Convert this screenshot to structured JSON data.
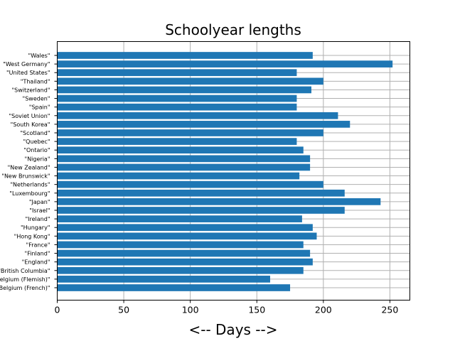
{
  "chart_data": {
    "type": "bar",
    "orientation": "horizontal",
    "title": "Schoolyear lengths",
    "xlabel": "<-- Days -->",
    "ylabel": "",
    "xlim": [
      0,
      265
    ],
    "xticks": [
      0,
      50,
      100,
      150,
      200,
      250
    ],
    "grid": true,
    "bar_color": "#1f77b4",
    "categories": [
      "\"Wales\"",
      "\"West Germany\"",
      "\"United States\"",
      "\"Thailand\"",
      "\"Switzerland\"",
      "\"Sweden\"",
      "\"Spain\"",
      "\"Soviet Union\"",
      "\"South Korea\"",
      "\"Scotland\"",
      "\"Quebec\"",
      "\"Ontario\"",
      "\"Nigeria\"",
      "\"New Zealand\"",
      "\"New Brunswick\"",
      "\"Netherlands\"",
      "\"Luxembourg\"",
      "\"Japan\"",
      "\"Israel\"",
      "\"Ireland\"",
      "\"Hungary\"",
      "\"Hong Kong\"",
      "\"France\"",
      "\"Finland\"",
      "\"England\"",
      "\"British Columbia\"",
      "\"Belgium (Flemish)\"",
      "\"Belgium (French)\""
    ],
    "values": [
      192,
      252,
      180,
      200,
      191,
      180,
      180,
      211,
      220,
      200,
      180,
      185,
      190,
      190,
      182,
      200,
      216,
      243,
      216,
      184,
      192,
      195,
      185,
      190,
      192,
      185,
      160,
      175
    ]
  }
}
